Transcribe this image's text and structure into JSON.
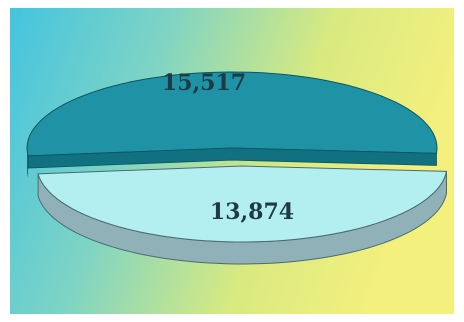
{
  "chart_data": {
    "type": "pie",
    "style": "3d-exploded",
    "values": [
      15517,
      13874
    ],
    "labels": [
      "15,517",
      "13,874"
    ],
    "colors": {
      "slice_top": [
        "#1f93a5",
        "#b3eff0"
      ],
      "slice_side": [
        "#127181",
        "#8fb1b7"
      ],
      "background_gradient": [
        "#44c4e0",
        "#7fd4c4",
        "#d9ea80",
        "#f3f07e"
      ]
    },
    "legend": "none",
    "title": ""
  }
}
